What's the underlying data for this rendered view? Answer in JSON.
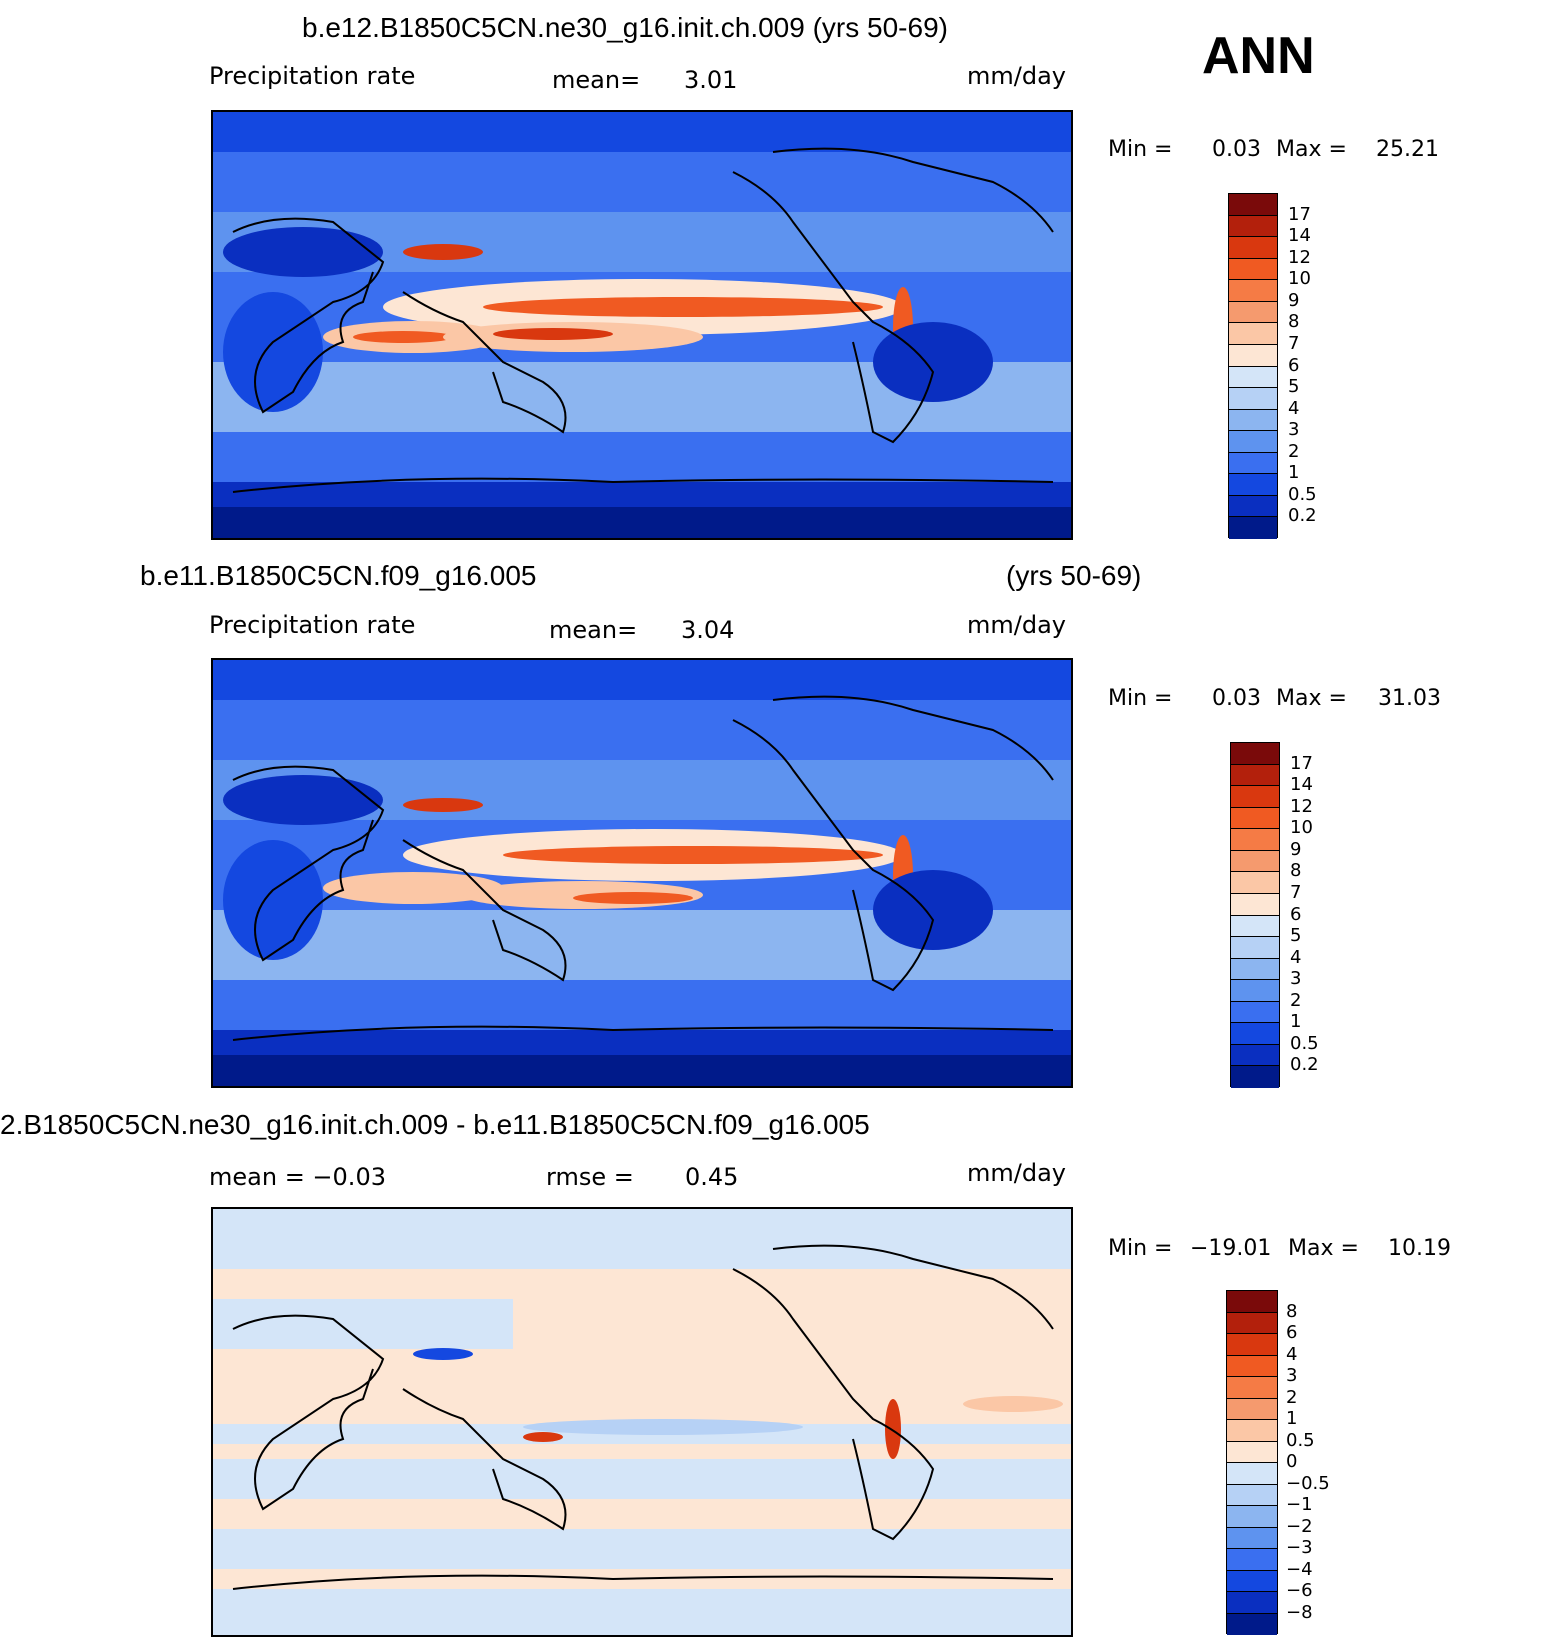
{
  "header": {
    "season": "ANN"
  },
  "panels": [
    {
      "title": "b.e12.B1850C5CN.ne30_g16.init.ch.009 (yrs 50-69)",
      "title_right": "",
      "left_label": "Precipitation  rate",
      "center_label": "mean=",
      "center_value": "3.01",
      "units": "mm/day",
      "min_label": "Min  =",
      "min_value": "0.03",
      "max_label": "Max  =",
      "max_value": "25.21",
      "levels": [
        "17",
        "14",
        "12",
        "10",
        "9",
        "8",
        "7",
        "6",
        "5",
        "4",
        "3",
        "2",
        "1",
        "0.5",
        "0.2"
      ]
    },
    {
      "title": "b.e11.B1850C5CN.f09_g16.005",
      "title_right": "(yrs 50-69)",
      "left_label": "Precipitation  rate",
      "center_label": "mean=",
      "center_value": "3.04",
      "units": "mm/day",
      "min_label": "Min  =",
      "min_value": "0.03",
      "max_label": "Max  =",
      "max_value": "31.03",
      "levels": [
        "17",
        "14",
        "12",
        "10",
        "9",
        "8",
        "7",
        "6",
        "5",
        "4",
        "3",
        "2",
        "1",
        "0.5",
        "0.2"
      ]
    },
    {
      "title": "2.B1850C5CN.ne30_g16.init.ch.009 - b.e11.B1850C5CN.f09_g16.005",
      "title_right": "",
      "left_label": "mean  =    −0.03",
      "center_label": "rmse  =",
      "center_value": "0.45",
      "units": "mm/day",
      "min_label": "Min  =",
      "min_value": "−19.01",
      "max_label": "Max  =",
      "max_value": "10.19",
      "levels": [
        "8",
        "6",
        "4",
        "3",
        "2",
        "1",
        "0.5",
        "0",
        "−0.5",
        "−1",
        "−2",
        "−3",
        "−4",
        "−6",
        "−8"
      ]
    }
  ],
  "colors": {
    "precip_scale": [
      "#7a0a0a",
      "#b3200c",
      "#d9380f",
      "#f05a22",
      "#f57b45",
      "#f59a6e",
      "#fbc7a6",
      "#fde6d4",
      "#d4e5f8",
      "#b6d1f5",
      "#8cb5f0",
      "#5e93ef",
      "#3a6ff0",
      "#1448e0",
      "#0a2fc0",
      "#001a8a"
    ],
    "anom_scale": [
      "#7a0a0a",
      "#b3200c",
      "#d9380f",
      "#f05a22",
      "#f57b45",
      "#f59a6e",
      "#fbc7a6",
      "#fde6d4",
      "#d4e5f8",
      "#b6d1f5",
      "#8cb5f0",
      "#5e93ef",
      "#3a6ff0",
      "#1448e0",
      "#0a2fc0",
      "#001a8a"
    ],
    "coastline": "#000000"
  }
}
